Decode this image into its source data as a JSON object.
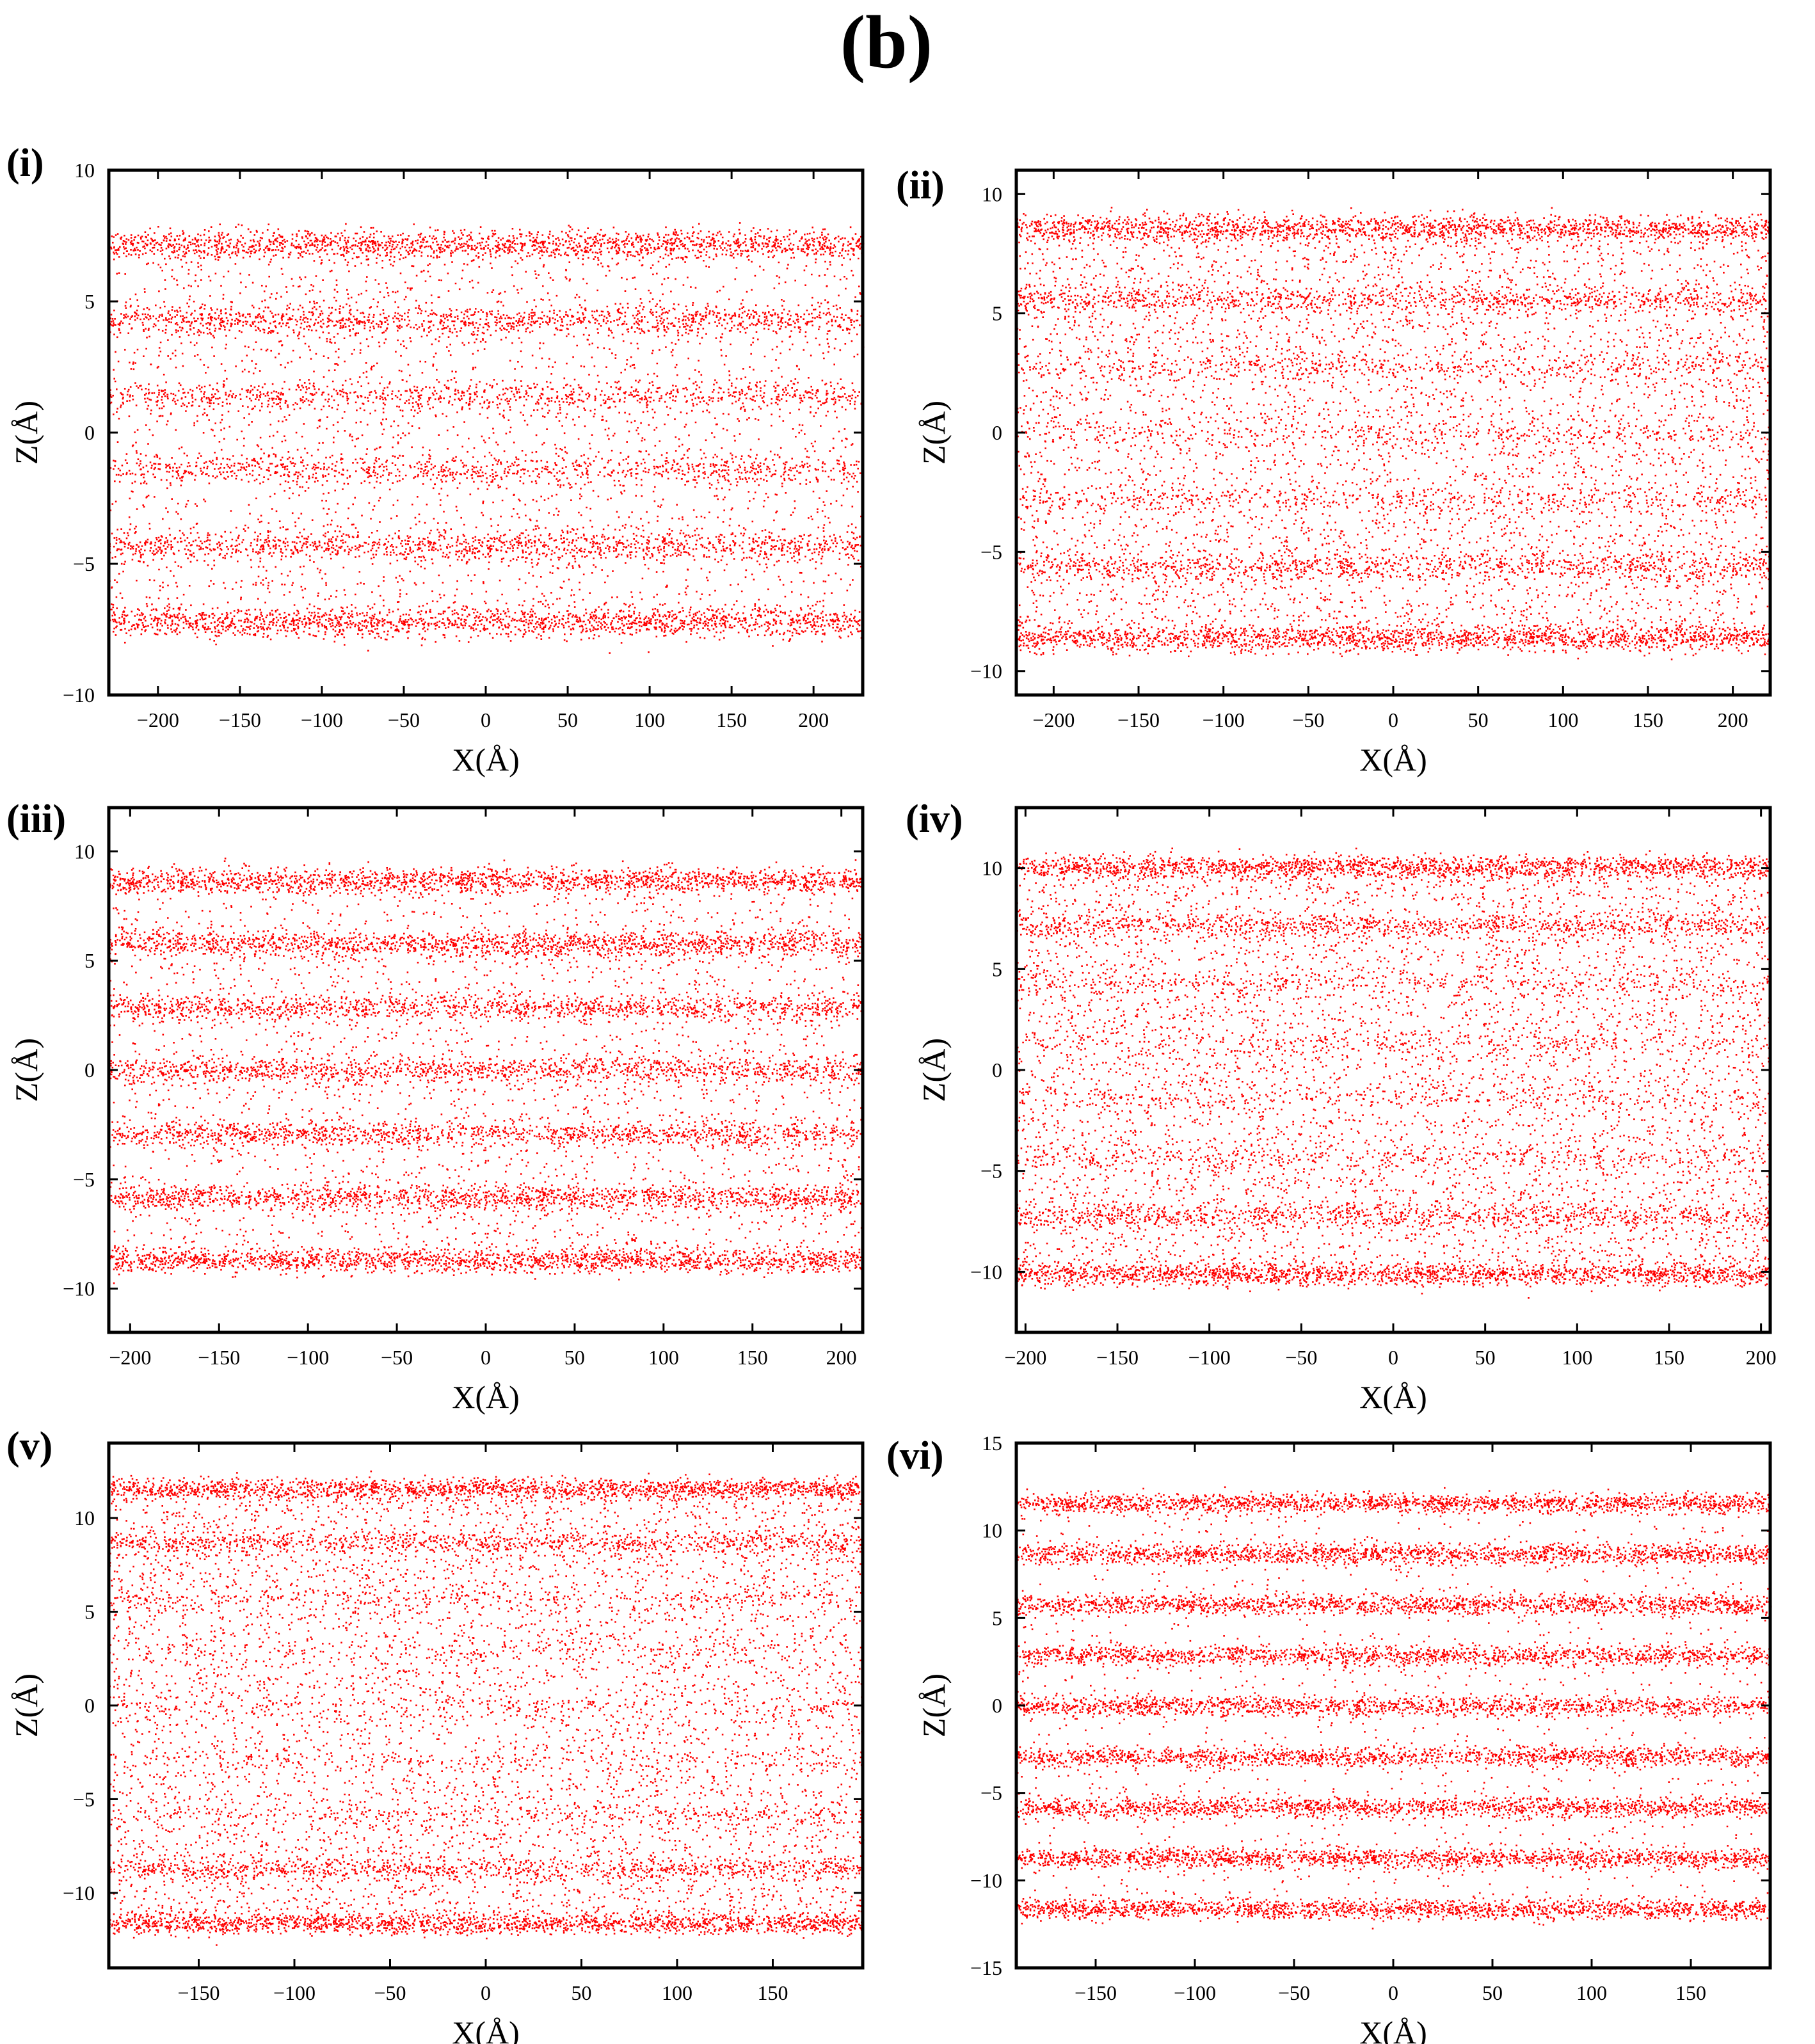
{
  "figure_title": "(b)",
  "colors": {
    "points": "#ff0000",
    "frame": "#000000"
  },
  "chart_data": [
    {
      "type": "scatter",
      "panel_label": "(i)",
      "xlabel": "X(Å)",
      "ylabel": "Z(Å)",
      "xlim": [
        -230,
        230
      ],
      "ylim": [
        -10,
        10
      ],
      "xticks": [
        -200,
        -150,
        -100,
        -50,
        0,
        50,
        100,
        150,
        200
      ],
      "yticks": [
        -10,
        -5,
        0,
        5,
        10
      ],
      "grid": false,
      "layer_z": [
        -7.2,
        -4.3,
        -1.4,
        1.4,
        4.3,
        7.2
      ],
      "layer_density": [
        1.0,
        0.7,
        0.5,
        0.5,
        0.7,
        1.0
      ],
      "background_fraction": 0.3
    },
    {
      "type": "scatter",
      "panel_label": "(ii)",
      "xlabel": "X(Å)",
      "ylabel": "Z(Å)",
      "xlim": [
        -222,
        222
      ],
      "ylim": [
        -11,
        11
      ],
      "xticks": [
        -200,
        -150,
        -100,
        -50,
        0,
        50,
        100,
        150,
        200
      ],
      "yticks": [
        -10,
        -5,
        0,
        5,
        10
      ],
      "grid": false,
      "layer_z": [
        -8.6,
        -5.6,
        -2.8,
        0,
        2.8,
        5.6,
        8.6
      ],
      "layer_density": [
        1.0,
        0.55,
        0.25,
        0.2,
        0.25,
        0.55,
        1.0
      ],
      "background_fraction": 0.55
    },
    {
      "type": "scatter",
      "panel_label": "(iii)",
      "xlabel": "X(Å)",
      "ylabel": "Z(Å)",
      "xlim": [
        -212,
        212
      ],
      "ylim": [
        -12,
        12
      ],
      "xticks": [
        -200,
        -150,
        -100,
        -50,
        0,
        50,
        100,
        150,
        200
      ],
      "yticks": [
        -10,
        -5,
        0,
        5,
        10
      ],
      "grid": false,
      "layer_z": [
        -8.7,
        -5.8,
        -2.9,
        0,
        2.9,
        5.8,
        8.7
      ],
      "layer_density": [
        1.0,
        0.85,
        0.7,
        0.7,
        0.7,
        0.85,
        1.0
      ],
      "background_fraction": 0.3
    },
    {
      "type": "scatter",
      "panel_label": "(iv)",
      "xlabel": "X(Å)",
      "ylabel": "Z(Å)",
      "xlim": [
        -205,
        205
      ],
      "ylim": [
        -13,
        13
      ],
      "xticks": [
        -200,
        -150,
        -100,
        -50,
        0,
        50,
        100,
        150,
        200
      ],
      "yticks": [
        -10,
        -5,
        0,
        5,
        10
      ],
      "grid": false,
      "layer_z": [
        -10.1,
        -7.2,
        -4.3,
        -1.4,
        1.4,
        4.3,
        7.2,
        10.1
      ],
      "layer_density": [
        1.0,
        0.5,
        0.2,
        0.15,
        0.15,
        0.2,
        0.5,
        1.0
      ],
      "background_fraction": 0.6
    },
    {
      "type": "scatter",
      "panel_label": "(v)",
      "xlabel": "X(Å)",
      "ylabel": "Z(Å)",
      "xlim": [
        -197,
        197
      ],
      "ylim": [
        -14,
        14
      ],
      "xticks": [
        -150,
        -100,
        -50,
        0,
        50,
        100,
        150
      ],
      "yticks": [
        -10,
        -5,
        0,
        5,
        10
      ],
      "grid": false,
      "layer_z": [
        -11.6,
        -8.7,
        -5.8,
        -2.9,
        0,
        2.9,
        5.8,
        8.7,
        11.6
      ],
      "layer_density": [
        1.0,
        0.5,
        0.15,
        0.1,
        0.1,
        0.1,
        0.15,
        0.5,
        1.0
      ],
      "background_fraction": 0.65
    },
    {
      "type": "scatter",
      "panel_label": "(vi)",
      "xlabel": "X(Å)",
      "ylabel": "Z(Å)",
      "xlim": [
        -190,
        190
      ],
      "ylim": [
        -15,
        15
      ],
      "xticks": [
        -150,
        -100,
        -50,
        0,
        50,
        100,
        150
      ],
      "yticks": [
        -15,
        -10,
        -5,
        0,
        5,
        10,
        15
      ],
      "grid": false,
      "layer_z": [
        -11.6,
        -8.7,
        -5.8,
        -2.9,
        0,
        2.9,
        5.8,
        8.7,
        11.6
      ],
      "layer_density": [
        1.0,
        0.95,
        0.9,
        0.85,
        0.85,
        0.85,
        0.9,
        0.95,
        1.0
      ],
      "background_fraction": 0.15
    }
  ]
}
